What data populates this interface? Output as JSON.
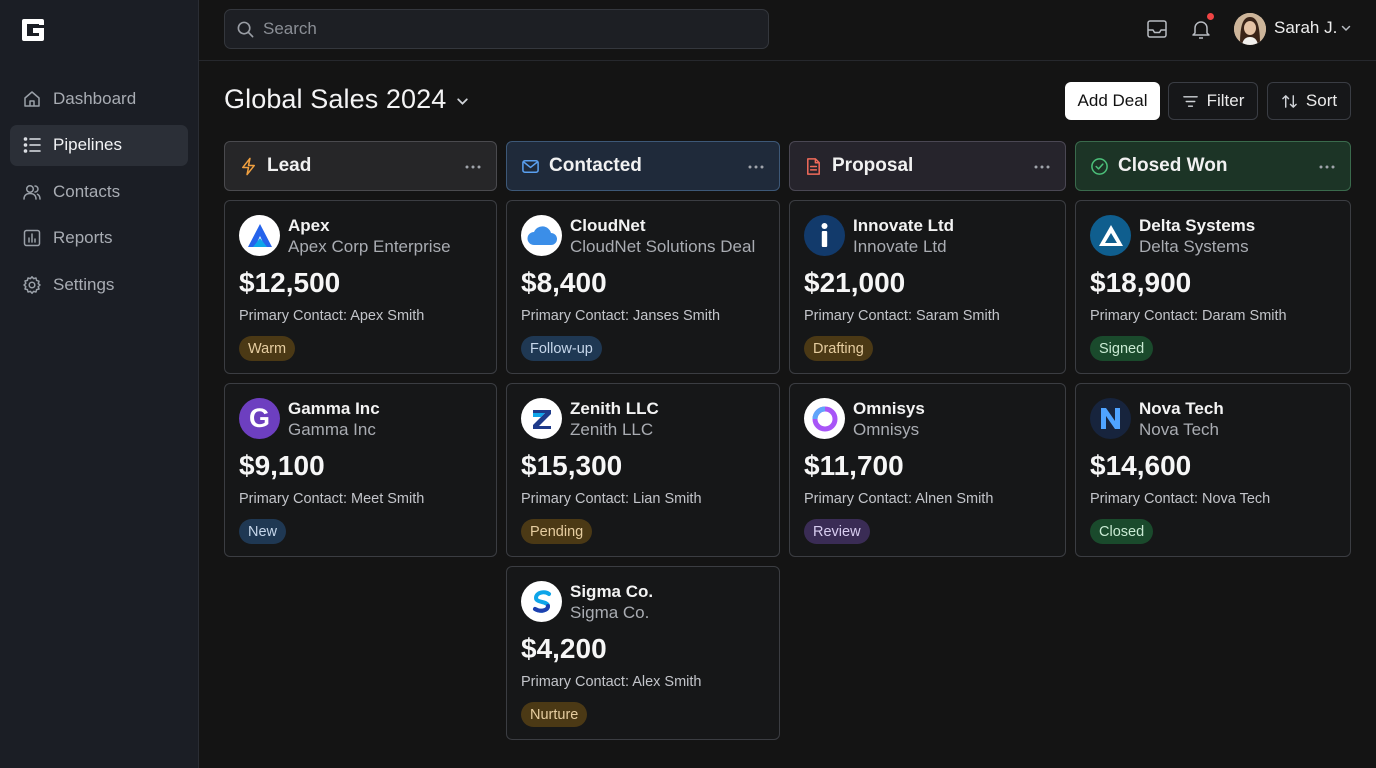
{
  "sidebar": {
    "items": [
      {
        "label": "Dashboard",
        "icon": "home-icon",
        "active": false
      },
      {
        "label": "Pipelines",
        "icon": "list-icon",
        "active": true
      },
      {
        "label": "Contacts",
        "icon": "users-icon",
        "active": false
      },
      {
        "label": "Reports",
        "icon": "bar-chart-icon",
        "active": false
      },
      {
        "label": "Settings",
        "icon": "gear-icon",
        "active": false
      }
    ]
  },
  "topbar": {
    "search_placeholder": "Search",
    "user_name": "Sarah J."
  },
  "header": {
    "title": "Global Sales 2024",
    "add_label": "Add Deal",
    "filter_label": "Filter",
    "sort_label": "Sort"
  },
  "colors": {
    "lead": "#f0a040",
    "contacted": "#5aa0f0",
    "proposal": "#f06a5a",
    "won": "#4cc07a"
  },
  "columns": [
    {
      "title": "Lead",
      "icon": "lightning-icon",
      "cards": [
        {
          "name": "Apex",
          "sub": "Apex Corp Enterprise",
          "amount": "$12,500",
          "contact": "Primary Contact: Apex Smith",
          "tag": "Warm"
        },
        {
          "name": "Gamma Inc",
          "sub": "Gamma Inc",
          "amount": "$9,100",
          "contact": "Primary Contact: Meet Smith",
          "tag": "New"
        }
      ]
    },
    {
      "title": "Contacted",
      "icon": "mail-icon",
      "cards": [
        {
          "name": "CloudNet",
          "sub": "CloudNet Solutions Deal",
          "amount": "$8,400",
          "contact": "Primary Contact: Janses Smith",
          "tag": "Follow-up"
        },
        {
          "name": "Zenith LLC",
          "sub": "Zenith LLC",
          "amount": "$15,300",
          "contact": "Primary Contact: Lian Smith",
          "tag": "Pending"
        },
        {
          "name": "Sigma Co.",
          "sub": "Sigma Co.",
          "amount": "$4,200",
          "contact": "Primary Contact: Alex Smith",
          "tag": "Nurture"
        }
      ]
    },
    {
      "title": "Proposal",
      "icon": "document-icon",
      "cards": [
        {
          "name": "Innovate Ltd",
          "sub": "Innovate Ltd",
          "amount": "$21,000",
          "contact": "Primary Contact: Saram Smith",
          "tag": "Drafting"
        },
        {
          "name": "Omnisys",
          "sub": "Omnisys",
          "amount": "$11,700",
          "contact": "Primary Contact: Alnen Smith",
          "tag": "Review"
        }
      ]
    },
    {
      "title": "Closed Won",
      "icon": "check-circle-icon",
      "cards": [
        {
          "name": "Delta Systems",
          "sub": "Delta Systems",
          "amount": "$18,900",
          "contact": "Primary Contact: Daram Smith",
          "tag": "Signed"
        },
        {
          "name": "Nova Tech",
          "sub": "Nova Tech",
          "amount": "$14,600",
          "contact": "Primary Contact: Nova Tech",
          "tag": "Closed"
        }
      ]
    }
  ]
}
